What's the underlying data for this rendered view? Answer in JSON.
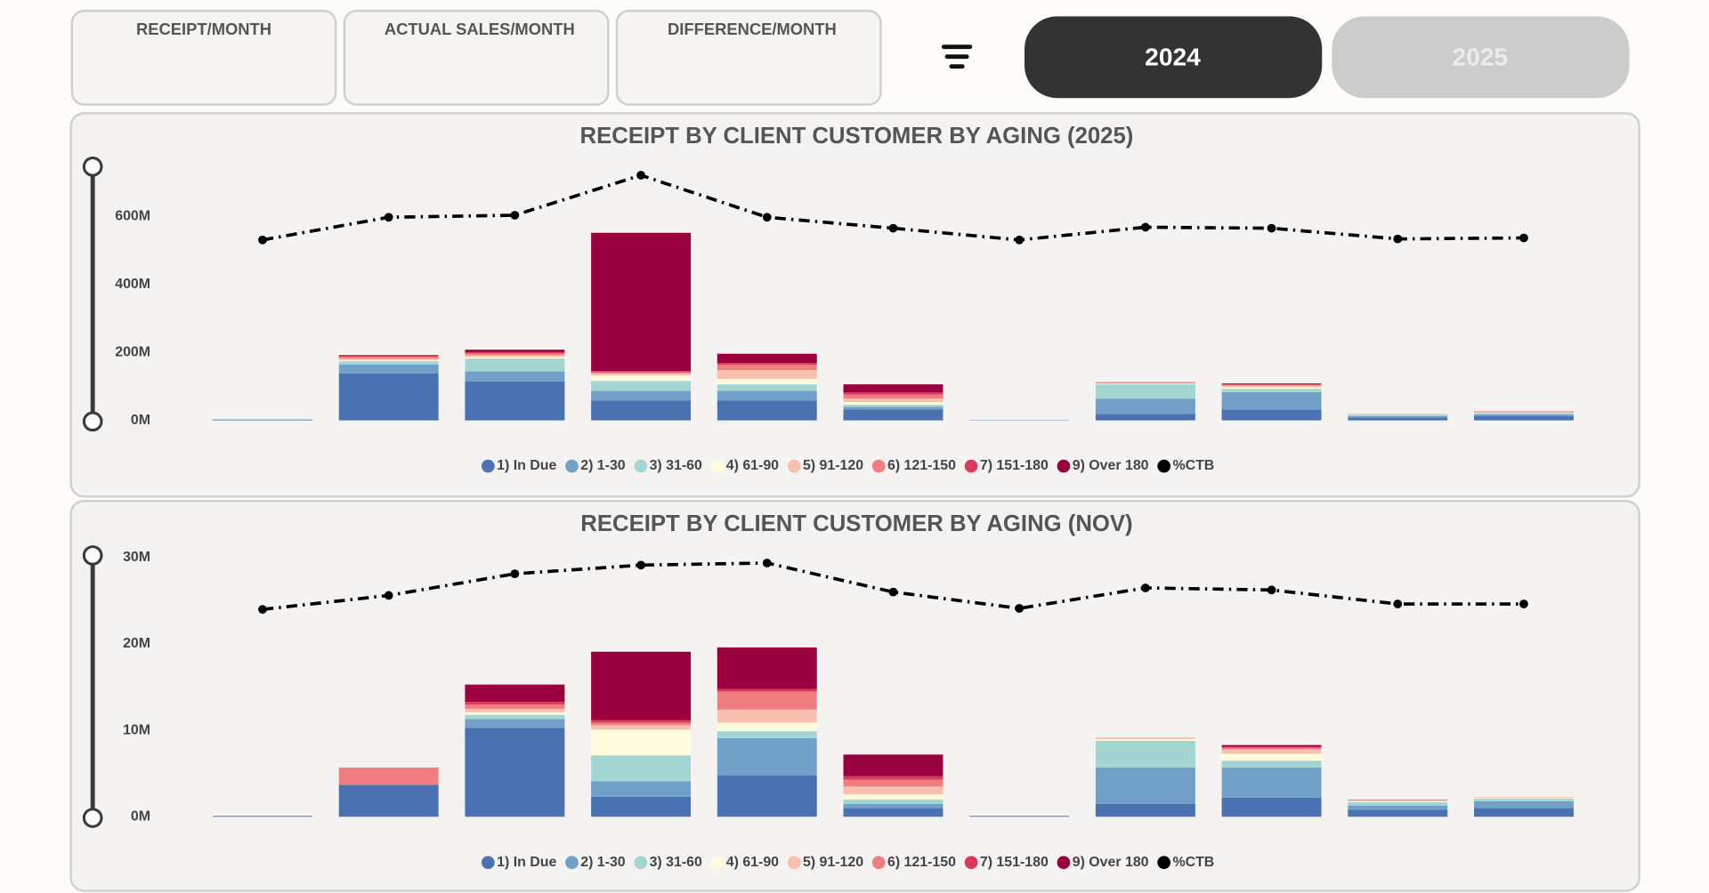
{
  "header": {
    "cards": [
      "RECEIPT/MONTH",
      "ACTUAL SALES/MONTH",
      "DIFFERENCE/MONTH"
    ],
    "years": [
      "2024",
      "2025"
    ]
  },
  "chart_data": [
    {
      "type": "bar",
      "stacked": true,
      "title": "RECEIPT BY CLIENT CUSTOMER BY AGING (2025)",
      "categories": [
        null,
        null,
        null,
        null,
        null,
        null,
        null,
        null,
        null,
        null,
        null
      ],
      "ylim": [
        0,
        750
      ],
      "yticks": [
        {
          "value": 0,
          "label": "0M"
        },
        {
          "value": 200,
          "label": "200M"
        },
        {
          "value": 400,
          "label": "400M"
        },
        {
          "value": 600,
          "label": "600M"
        }
      ],
      "y2lim": [
        0,
        100
      ],
      "legend": "bottom",
      "grid": false,
      "series": [
        {
          "name": "1) In Due",
          "color": "#4a72b2",
          "values": [
            2,
            138,
            115,
            58,
            58,
            32,
            1,
            19,
            32,
            8,
            12
          ]
        },
        {
          "name": "2) 1-30",
          "color": "#70a0c8",
          "values": [
            1,
            26,
            29,
            29,
            29,
            8,
            0,
            45,
            51,
            5,
            6
          ]
        },
        {
          "name": "3) 31-60",
          "color": "#a3d5d3",
          "values": [
            0,
            10,
            38,
            29,
            19,
            6,
            0,
            42,
            10,
            3,
            3
          ]
        },
        {
          "name": "4) 61-90",
          "color": "#fffbdc",
          "values": [
            0,
            3,
            4,
            16,
            16,
            8,
            0,
            2,
            5,
            1,
            1
          ]
        },
        {
          "name": "5) 91-120",
          "color": "#fbbfae",
          "values": [
            0,
            5,
            6,
            6,
            26,
            10,
            0,
            2,
            4,
            1,
            2
          ]
        },
        {
          "name": "6) 121-150",
          "color": "#f07d80",
          "values": [
            0,
            5,
            5,
            4,
            16,
            12,
            0,
            1,
            3,
            1,
            1
          ]
        },
        {
          "name": "7) 151-180",
          "color": "#d83a5a",
          "values": [
            0,
            3,
            4,
            3,
            5,
            6,
            0,
            0,
            2,
            0,
            1
          ]
        },
        {
          "name": "9) Over 180",
          "color": "#9b003e",
          "values": [
            0,
            2,
            7,
            407,
            27,
            24,
            0,
            1,
            2,
            0,
            0
          ]
        },
        {
          "name": "%CTB",
          "color": "#000000",
          "type": "line",
          "axis": "y2",
          "values": [
            70.8,
            79.7,
            80.5,
            96.2,
            79.7,
            75.4,
            70.8,
            75.8,
            75.4,
            71.2,
            71.6
          ]
        }
      ]
    },
    {
      "type": "bar",
      "stacked": true,
      "title": "RECEIPT BY CLIENT CUSTOMER BY AGING (NOV)",
      "categories": [
        null,
        null,
        null,
        null,
        null,
        null,
        null,
        null,
        null,
        null,
        null
      ],
      "ylim": [
        0,
        30
      ],
      "yticks": [
        {
          "value": 0,
          "label": "0M"
        },
        {
          "value": 10,
          "label": "10M"
        },
        {
          "value": 20,
          "label": "20M"
        },
        {
          "value": 30,
          "label": "30M"
        }
      ],
      "y2lim": [
        0,
        100
      ],
      "legend": "bottom",
      "grid": false,
      "series": [
        {
          "name": "1) In Due",
          "color": "#4a72b2",
          "values": [
            0.1,
            3.7,
            10.3,
            2.3,
            4.8,
            1.0,
            0.1,
            1.5,
            2.2,
            0.8,
            1.0
          ]
        },
        {
          "name": "2) 1-30",
          "color": "#70a0c8",
          "values": [
            0,
            0,
            1.0,
            1.8,
            4.3,
            0.5,
            0,
            4.2,
            3.5,
            0.5,
            0.8
          ]
        },
        {
          "name": "3) 31-60",
          "color": "#a3d5d3",
          "values": [
            0,
            0,
            0.5,
            3.0,
            0.8,
            0.5,
            0,
            3.1,
            0.8,
            0.4,
            0.3
          ]
        },
        {
          "name": "4) 61-90",
          "color": "#fffbdc",
          "values": [
            0,
            0,
            0.3,
            3.0,
            1.0,
            0.6,
            0,
            0.2,
            0.8,
            0.1,
            0.1
          ]
        },
        {
          "name": "5) 91-120",
          "color": "#fbbfae",
          "values": [
            0,
            0,
            0.4,
            0.5,
            1.5,
            0.9,
            0,
            0.2,
            0.5,
            0.1,
            0.1
          ]
        },
        {
          "name": "6) 121-150",
          "color": "#f07d80",
          "values": [
            0,
            2.0,
            0.5,
            0.3,
            2.1,
            0.8,
            0,
            0,
            0.2,
            0.1,
            0
          ]
        },
        {
          "name": "7) 151-180",
          "color": "#d83a5a",
          "values": [
            0,
            0,
            0.3,
            0.3,
            0.3,
            0.4,
            0,
            0,
            0.1,
            0,
            0
          ]
        },
        {
          "name": "9) Over 180",
          "color": "#9b003e",
          "values": [
            0,
            0,
            2.0,
            7.9,
            4.8,
            2.5,
            0,
            0,
            0.2,
            0,
            0
          ]
        },
        {
          "name": "%CTB",
          "color": "#000000",
          "type": "line",
          "axis": "y2",
          "values": [
            80,
            85.4,
            93.75,
            97.1,
            97.9,
            86.7,
            80.4,
            88.3,
            87.5,
            82.1,
            82.1
          ]
        }
      ]
    }
  ]
}
